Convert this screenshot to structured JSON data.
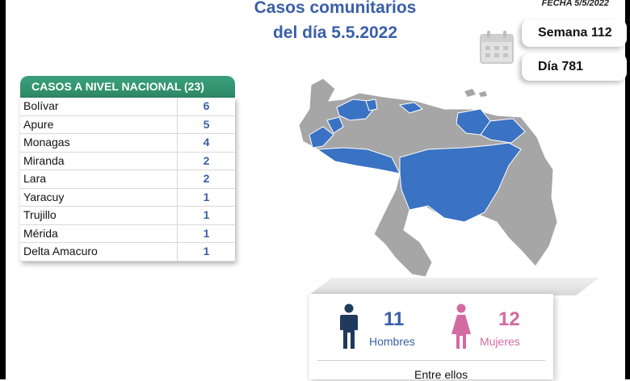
{
  "header": {
    "title_line1": "Casos comunitarios",
    "title_line2": "del día 5.5.2022",
    "fecha": "FECHA 5/5/2022"
  },
  "stats": {
    "semana": "Semana 112",
    "dia": "Día 781"
  },
  "table": {
    "title": "CASOS A NIVEL NACIONAL  (23)",
    "rows": [
      {
        "state": "Bolívar",
        "count": "6"
      },
      {
        "state": "Apure",
        "count": "5"
      },
      {
        "state": "Monagas",
        "count": "4"
      },
      {
        "state": "Miranda",
        "count": "2"
      },
      {
        "state": "Lara",
        "count": "2"
      },
      {
        "state": "Yaracuy",
        "count": "1"
      },
      {
        "state": "Trujillo",
        "count": "1"
      },
      {
        "state": "Mérida",
        "count": "1"
      },
      {
        "state": "Delta Amacuro",
        "count": "1"
      }
    ]
  },
  "gender": {
    "men_count": "11",
    "men_label": "Hombres",
    "women_count": "12",
    "women_label": "Mujeres",
    "footer": "Entre ellos"
  },
  "colors": {
    "title_blue": "#3a5fa8",
    "header_green": "#2e8667",
    "map_highlight": "#3a72c4",
    "map_gray": "#a6a6a6",
    "men_icon": "#1f3a5c",
    "women_icon": "#d36aa0"
  },
  "icons": {
    "calendar": "calendar-icon",
    "men": "man-icon",
    "women": "woman-icon"
  }
}
